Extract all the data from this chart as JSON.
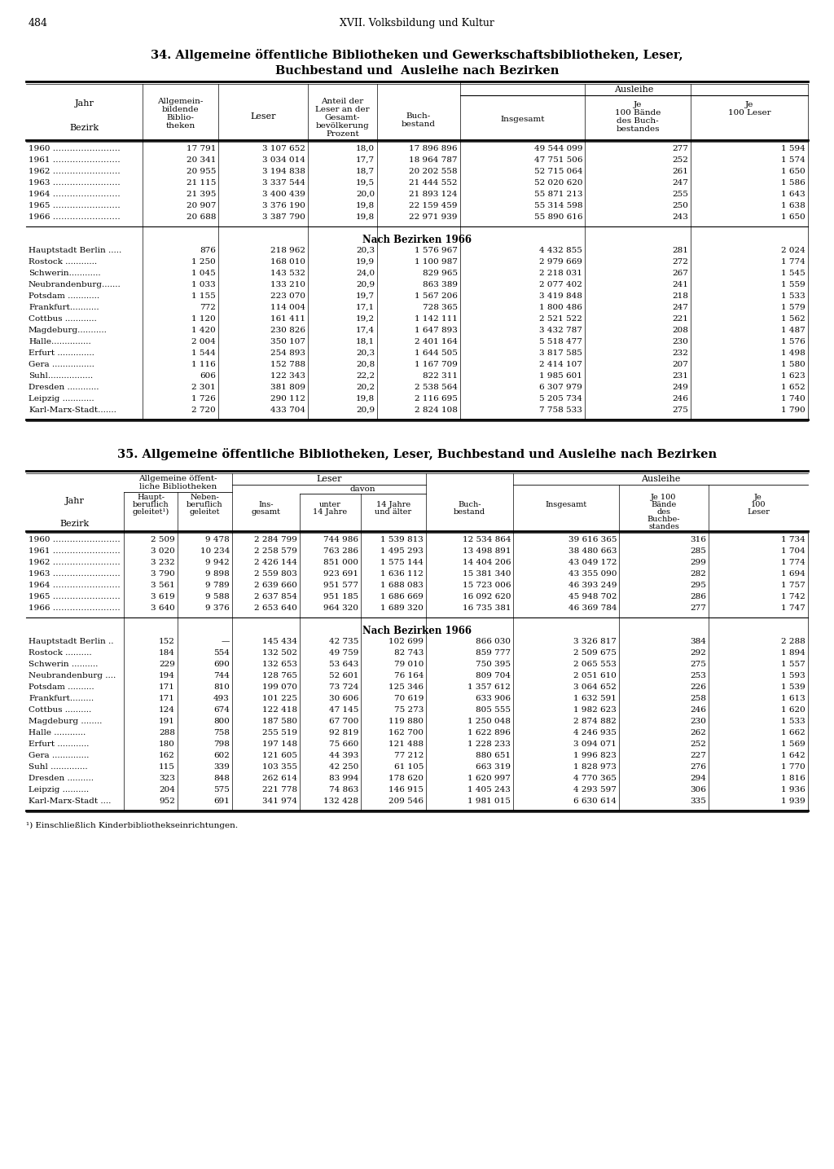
{
  "page_number": "484",
  "page_header": "XVII. Volksbildung und Kultur",
  "table1_title": "34. Allgemeine öffentliche Bibliotheken und Gewerkschaftsbibliotheken, Leser,",
  "table1_title2": "Buchbestand und  Ausleihe nach Bezirken",
  "table1_years": [
    [
      "1960",
      "17 791",
      "3 107 652",
      "18,0",
      "17 896 896",
      "49 544 099",
      "277",
      "1 594"
    ],
    [
      "1961",
      "20 341",
      "3 034 014",
      "17,7",
      "18 964 787",
      "47 751 506",
      "252",
      "1 574"
    ],
    [
      "1962",
      "20 955",
      "3 194 838",
      "18,7",
      "20 202 558",
      "52 715 064",
      "261",
      "1 650"
    ],
    [
      "1963",
      "21 115",
      "3 337 544",
      "19,5",
      "21 444 552",
      "52 020 620",
      "247",
      "1 586"
    ],
    [
      "1964",
      "21 395",
      "3 400 439",
      "20,0",
      "21 893 124",
      "55 871 213",
      "255",
      "1 643"
    ],
    [
      "1965",
      "20 907",
      "3 376 190",
      "19,8",
      "22 159 459",
      "55 314 598",
      "250",
      "1 638"
    ],
    [
      "1966",
      "20 688",
      "3 387 790",
      "19,8",
      "22 971 939",
      "55 890 616",
      "243",
      "1 650"
    ]
  ],
  "table1_bezirke_header": "Nach Bezirken 1966",
  "table1_bezirke": [
    [
      "Hauptstadt Berlin .....",
      "876",
      "218 962",
      "20,3",
      "1 576 967",
      "4 432 855",
      "281",
      "2 024"
    ],
    [
      "Rostock ............",
      "1 250",
      "168 010",
      "19,9",
      "1 100 987",
      "2 979 669",
      "272",
      "1 774"
    ],
    [
      "Schwerin............",
      "1 045",
      "143 532",
      "24,0",
      "829 965",
      "2 218 031",
      "267",
      "1 545"
    ],
    [
      "Neubrandenburg.......",
      "1 033",
      "133 210",
      "20,9",
      "863 389",
      "2 077 402",
      "241",
      "1 559"
    ],
    [
      "Potsdam ............",
      "1 155",
      "223 070",
      "19,7",
      "1 567 206",
      "3 419 848",
      "218",
      "1 533"
    ],
    [
      "Frankfurt...........",
      "772",
      "114 004",
      "17,1",
      "728 365",
      "1 800 486",
      "247",
      "1 579"
    ],
    [
      "Cottbus ............",
      "1 120",
      "161 411",
      "19,2",
      "1 142 111",
      "2 521 522",
      "221",
      "1 562"
    ],
    [
      "Magdeburg...........",
      "1 420",
      "230 826",
      "17,4",
      "1 647 893",
      "3 432 787",
      "208",
      "1 487"
    ],
    [
      "Halle...............",
      "2 004",
      "350 107",
      "18,1",
      "2 401 164",
      "5 518 477",
      "230",
      "1 576"
    ],
    [
      "Erfurt ..............",
      "1 544",
      "254 893",
      "20,3",
      "1 644 505",
      "3 817 585",
      "232",
      "1 498"
    ],
    [
      "Gera ................",
      "1 116",
      "152 788",
      "20,8",
      "1 167 709",
      "2 414 107",
      "207",
      "1 580"
    ],
    [
      "Suhl.................",
      "606",
      "122 343",
      "22,2",
      "822 311",
      "1 985 601",
      "231",
      "1 623"
    ],
    [
      "Dresden ............",
      "2 301",
      "381 809",
      "20,2",
      "2 538 564",
      "6 307 979",
      "249",
      "1 652"
    ],
    [
      "Leipzig ............",
      "1 726",
      "290 112",
      "19,8",
      "2 116 695",
      "5 205 734",
      "246",
      "1 740"
    ],
    [
      "Karl-Marx-Stadt.......",
      "2 720",
      "433 704",
      "20,9",
      "2 824 108",
      "7 758 533",
      "275",
      "1 790"
    ]
  ],
  "table2_title": "35. Allgemeine öffentliche Bibliotheken, Leser, Buchbestand und Ausleihe nach Bezirken",
  "table2_years": [
    [
      "1960",
      "2 509",
      "9 478",
      "2 284 799",
      "744 986",
      "1 539 813",
      "12 534 864",
      "39 616 365",
      "316",
      "1 734"
    ],
    [
      "1961",
      "3 020",
      "10 234",
      "2 258 579",
      "763 286",
      "1 495 293",
      "13 498 891",
      "38 480 663",
      "285",
      "1 704"
    ],
    [
      "1962",
      "3 232",
      "9 942",
      "2 426 144",
      "851 000",
      "1 575 144",
      "14 404 206",
      "43 049 172",
      "299",
      "1 774"
    ],
    [
      "1963",
      "3 790",
      "9 898",
      "2 559 803",
      "923 691",
      "1 636 112",
      "15 381 340",
      "43 355 090",
      "282",
      "1 694"
    ],
    [
      "1964",
      "3 561",
      "9 789",
      "2 639 660",
      "951 577",
      "1 688 083",
      "15 723 006",
      "46 393 249",
      "295",
      "1 757"
    ],
    [
      "1965",
      "3 619",
      "9 588",
      "2 637 854",
      "951 185",
      "1 686 669",
      "16 092 620",
      "45 948 702",
      "286",
      "1 742"
    ],
    [
      "1966",
      "3 640",
      "9 376",
      "2 653 640",
      "964 320",
      "1 689 320",
      "16 735 381",
      "46 369 784",
      "277",
      "1 747"
    ]
  ],
  "table2_bezirke_header": "Nach Bezirken 1966",
  "table2_bezirke": [
    [
      "Hauptstadt Berlin ..",
      "152",
      "—",
      "145 434",
      "42 735",
      "102 699",
      "866 030",
      "3 326 817",
      "384",
      "2 288"
    ],
    [
      "Rostock ..........",
      "184",
      "554",
      "132 502",
      "49 759",
      "82 743",
      "859 777",
      "2 509 675",
      "292",
      "1 894"
    ],
    [
      "Schwerin ..........",
      "229",
      "690",
      "132 653",
      "53 643",
      "79 010",
      "750 395",
      "2 065 553",
      "275",
      "1 557"
    ],
    [
      "Neubrandenburg ....",
      "194",
      "744",
      "128 765",
      "52 601",
      "76 164",
      "809 704",
      "2 051 610",
      "253",
      "1 593"
    ],
    [
      "Potsdam ..........",
      "171",
      "810",
      "199 070",
      "73 724",
      "125 346",
      "1 357 612",
      "3 064 652",
      "226",
      "1 539"
    ],
    [
      "Frankfurt.........",
      "171",
      "493",
      "101 225",
      "30 606",
      "70 619",
      "633 906",
      "1 632 591",
      "258",
      "1 613"
    ],
    [
      "Cottbus ..........",
      "124",
      "674",
      "122 418",
      "47 145",
      "75 273",
      "805 555",
      "1 982 623",
      "246",
      "1 620"
    ],
    [
      "Magdeburg ........",
      "191",
      "800",
      "187 580",
      "67 700",
      "119 880",
      "1 250 048",
      "2 874 882",
      "230",
      "1 533"
    ],
    [
      "Halle ............",
      "288",
      "758",
      "255 519",
      "92 819",
      "162 700",
      "1 622 896",
      "4 246 935",
      "262",
      "1 662"
    ],
    [
      "Erfurt ............",
      "180",
      "798",
      "197 148",
      "75 660",
      "121 488",
      "1 228 233",
      "3 094 071",
      "252",
      "1 569"
    ],
    [
      "Gera ..............",
      "162",
      "602",
      "121 605",
      "44 393",
      "77 212",
      "880 651",
      "1 996 823",
      "227",
      "1 642"
    ],
    [
      "Suhl ..............",
      "115",
      "339",
      "103 355",
      "42 250",
      "61 105",
      "663 319",
      "1 828 973",
      "276",
      "1 770"
    ],
    [
      "Dresden ..........",
      "323",
      "848",
      "262 614",
      "83 994",
      "178 620",
      "1 620 997",
      "4 770 365",
      "294",
      "1 816"
    ],
    [
      "Leipzig ..........",
      "204",
      "575",
      "221 778",
      "74 863",
      "146 915",
      "1 405 243",
      "4 293 597",
      "306",
      "1 936"
    ],
    [
      "Karl-Marx-Stadt ....",
      "952",
      "691",
      "341 974",
      "132 428",
      "209 546",
      "1 981 015",
      "6 630 614",
      "335",
      "1 939"
    ]
  ],
  "footnote": "¹) Einschließlich Kinderbibliothekseinrichtungen."
}
